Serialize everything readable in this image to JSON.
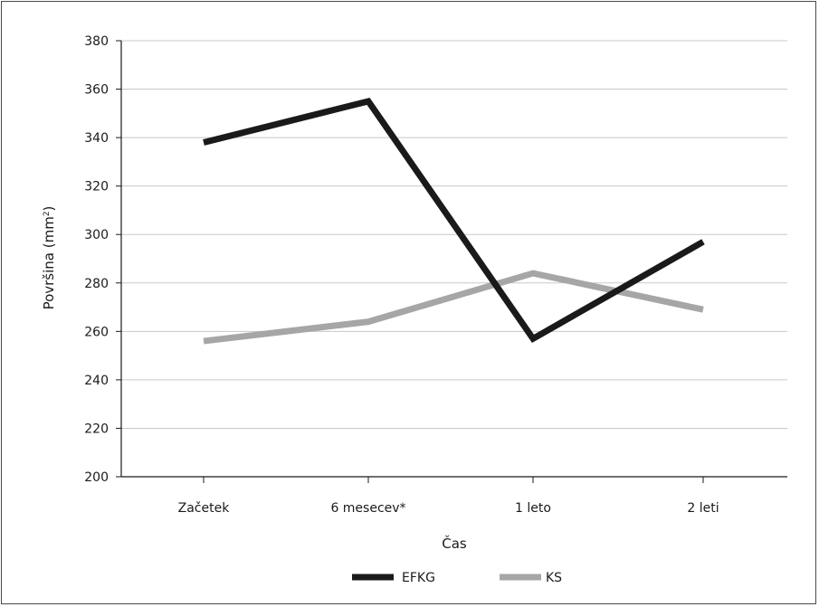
{
  "chart_data": {
    "type": "line",
    "categories": [
      "Začetek",
      "6 mesecev*",
      "1 leto",
      "2 leti"
    ],
    "series": [
      {
        "name": "EFKG",
        "color": "#1a1a1a",
        "values": [
          338,
          355,
          257,
          297
        ]
      },
      {
        "name": "KS",
        "color": "#a6a6a6",
        "values": [
          256,
          264,
          284,
          269
        ]
      }
    ],
    "xlabel": "Čas",
    "ylabel_main": "Površina (mm",
    "ylabel_sup": "2",
    "ylabel_close": ")",
    "ylim": [
      200,
      380
    ],
    "yticks": [
      200,
      220,
      240,
      260,
      280,
      300,
      320,
      340,
      360,
      380
    ],
    "grid": true,
    "legend_position": "bottom"
  }
}
